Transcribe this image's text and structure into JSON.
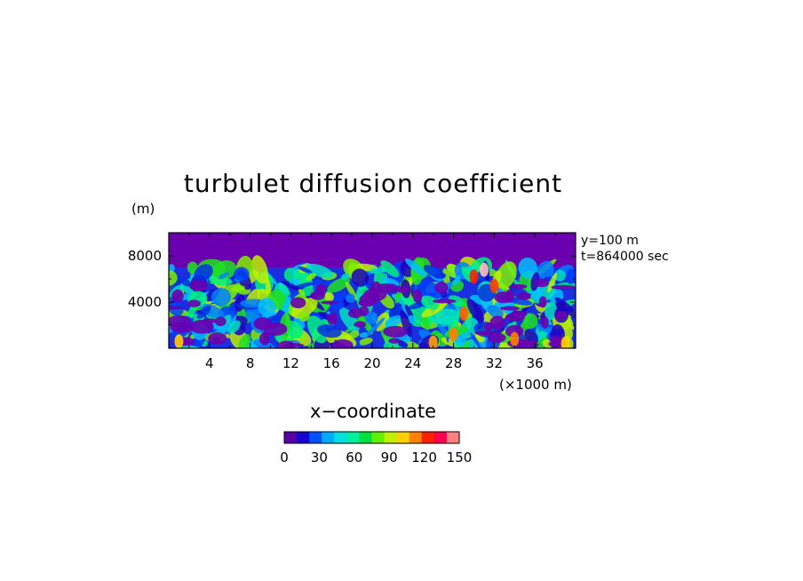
{
  "chart_data": {
    "type": "heatmap",
    "title": "turbulet diffusion coefficient",
    "ylabel_unit": "(m)",
    "xlabel": "x−coordinate",
    "x_unit": "(×1000 m)",
    "xlim": [
      0,
      40
    ],
    "ylim": [
      0,
      10000
    ],
    "x_ticks": [
      "4",
      "8",
      "12",
      "16",
      "20",
      "24",
      "28",
      "32",
      "36"
    ],
    "y_ticks": [
      "8000",
      "4000"
    ],
    "annotations": [
      "y=100 m",
      "t=864000 sec"
    ],
    "colorbar": {
      "ticks": [
        "0",
        "30",
        "60",
        "90",
        "120",
        "150"
      ],
      "range": [
        0,
        150
      ],
      "colors": [
        "#5a00a8",
        "#1a00d0",
        "#0050ff",
        "#00aaff",
        "#00e0e0",
        "#00f0a0",
        "#00e040",
        "#60f000",
        "#c0f000",
        "#ffd000",
        "#ff8000",
        "#ff2000",
        "#ff0050",
        "#ff8080"
      ]
    },
    "background_value_color": "#6a00b0",
    "field_description_rows": {
      "upper_layer_above_7000m": "0",
      "turbulent_layer_below_7000m": "0-150"
    }
  }
}
